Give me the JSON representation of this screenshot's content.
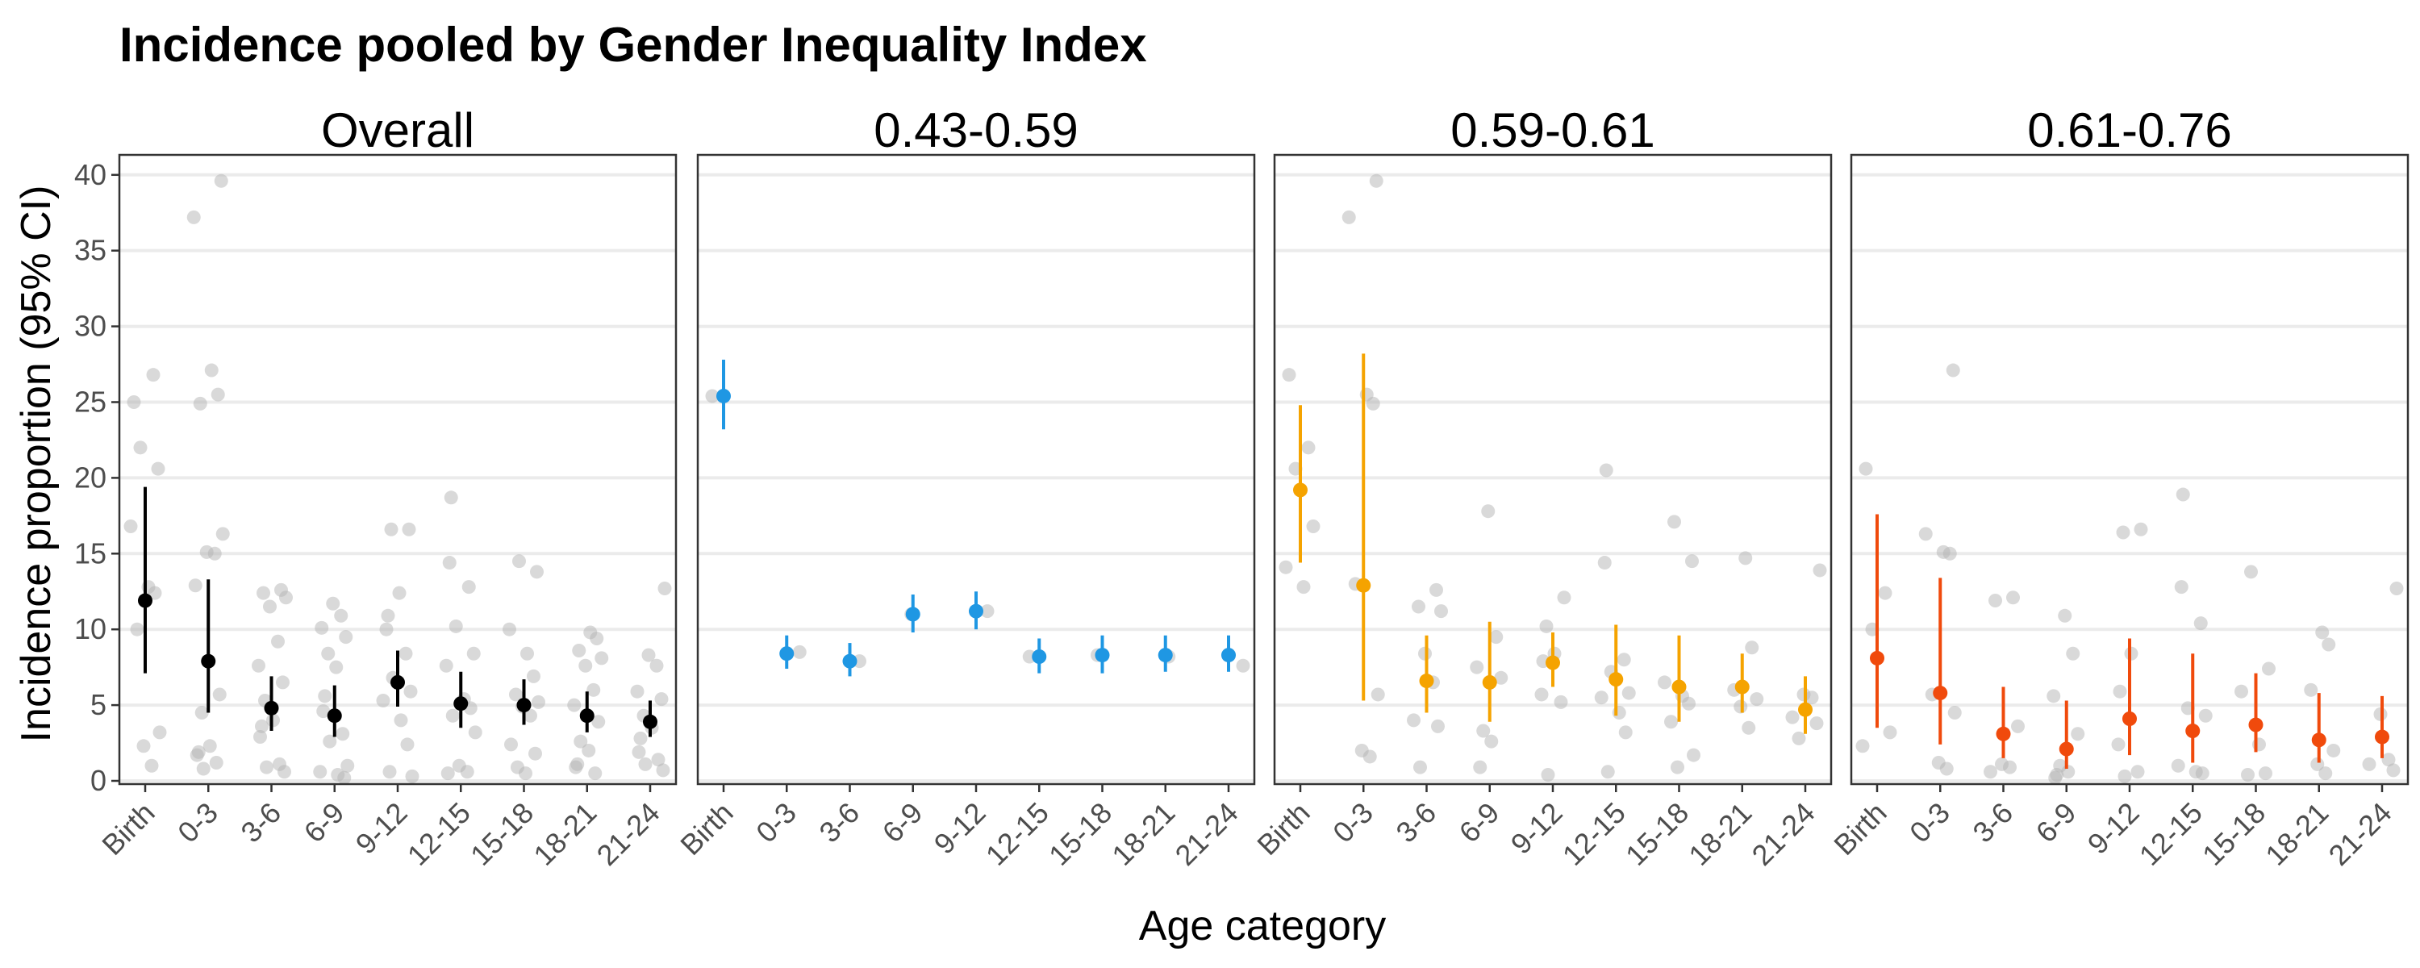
{
  "chart_data": {
    "type": "scatter",
    "title": "Incidence pooled by Gender Inequality Index",
    "xlabel": "Age category",
    "ylabel": "Incidence proportion (95% CI)",
    "categories": [
      "Birth",
      "0-3",
      "3-6",
      "6-9",
      "9-12",
      "12-15",
      "15-18",
      "18-21",
      "21-24"
    ],
    "ylim": [
      0,
      41
    ],
    "yticks": [
      0,
      5,
      10,
      15,
      20,
      25,
      30,
      35,
      40
    ],
    "grid": true,
    "colors": {
      "raw": "#c8c8c8",
      "panel_border": "#333333",
      "grid": "#ebebeb"
    },
    "panels": [
      {
        "label": "Overall",
        "color": "#000000",
        "estimates": [
          {
            "x": "Birth",
            "y": 11.9,
            "lower": 7.1,
            "upper": 19.4
          },
          {
            "x": "0-3",
            "y": 7.9,
            "lower": 4.5,
            "upper": 13.3
          },
          {
            "x": "3-6",
            "y": 4.8,
            "lower": 3.3,
            "upper": 6.9
          },
          {
            "x": "6-9",
            "y": 4.3,
            "lower": 2.9,
            "upper": 6.3
          },
          {
            "x": "9-12",
            "y": 6.5,
            "lower": 4.9,
            "upper": 8.6
          },
          {
            "x": "12-15",
            "y": 5.1,
            "lower": 3.5,
            "upper": 7.2
          },
          {
            "x": "15-18",
            "y": 5.0,
            "lower": 3.7,
            "upper": 6.7
          },
          {
            "x": "18-21",
            "y": 4.3,
            "lower": 3.2,
            "upper": 5.9
          },
          {
            "x": "21-24",
            "y": 3.9,
            "lower": 2.9,
            "upper": 5.3
          }
        ],
        "raw_points": [
          {
            "x": "Birth",
            "values": [
              25.0,
              26.8,
              22.0,
              20.6,
              16.8,
              12.8,
              12.4,
              10.0,
              3.2,
              2.3,
              1.0
            ]
          },
          {
            "x": "0-3",
            "values": [
              39.6,
              37.2,
              27.1,
              25.5,
              24.9,
              16.3,
              15.1,
              15.0,
              12.9,
              5.7,
              4.5,
              2.3,
              1.9,
              1.7,
              1.2,
              0.8
            ]
          },
          {
            "x": "3-6",
            "values": [
              12.6,
              12.4,
              12.1,
              11.5,
              9.2,
              7.6,
              6.5,
              5.3,
              4.0,
              3.6,
              2.9,
              1.1,
              0.9,
              0.6
            ]
          },
          {
            "x": "6-9",
            "values": [
              11.7,
              10.9,
              10.1,
              9.5,
              8.4,
              7.5,
              5.6,
              4.6,
              3.1,
              2.6,
              1.0,
              0.6,
              0.4,
              0.2
            ]
          },
          {
            "x": "9-12",
            "values": [
              16.6,
              16.6,
              12.4,
              10.9,
              10.0,
              8.4,
              6.8,
              5.9,
              5.3,
              4.0,
              2.4,
              0.6,
              0.3
            ]
          },
          {
            "x": "12-15",
            "values": [
              18.7,
              14.4,
              12.8,
              10.2,
              8.4,
              7.6,
              5.4,
              4.8,
              4.3,
              3.2,
              1.0,
              0.6,
              0.5
            ]
          },
          {
            "x": "15-18",
            "values": [
              14.5,
              13.8,
              10.0,
              8.4,
              6.9,
              5.7,
              5.2,
              4.9,
              4.3,
              2.4,
              1.8,
              0.9,
              0.5
            ]
          },
          {
            "x": "18-21",
            "values": [
              9.8,
              9.4,
              8.6,
              8.1,
              7.6,
              6.0,
              5.0,
              3.9,
              2.6,
              2.0,
              1.1,
              0.9,
              0.5
            ]
          },
          {
            "x": "21-24",
            "values": [
              12.7,
              8.3,
              7.6,
              5.9,
              5.4,
              4.3,
              3.5,
              2.8,
              1.9,
              1.4,
              1.1,
              0.7
            ]
          }
        ]
      },
      {
        "label": "0.43-0.59",
        "color": "#1f97e3",
        "estimates": [
          {
            "x": "Birth",
            "y": 25.4,
            "lower": 23.2,
            "upper": 27.8
          },
          {
            "x": "0-3",
            "y": 8.4,
            "lower": 7.4,
            "upper": 9.6
          },
          {
            "x": "3-6",
            "y": 7.9,
            "lower": 6.9,
            "upper": 9.1
          },
          {
            "x": "6-9",
            "y": 11.0,
            "lower": 9.8,
            "upper": 12.3
          },
          {
            "x": "9-12",
            "y": 11.2,
            "lower": 10.0,
            "upper": 12.5
          },
          {
            "x": "12-15",
            "y": 8.2,
            "lower": 7.1,
            "upper": 9.4
          },
          {
            "x": "15-18",
            "y": 8.3,
            "lower": 7.1,
            "upper": 9.6
          },
          {
            "x": "18-21",
            "y": 8.3,
            "lower": 7.2,
            "upper": 9.6
          },
          {
            "x": "21-24",
            "y": 8.3,
            "lower": 7.2,
            "upper": 9.6
          }
        ],
        "raw_points": [
          {
            "x": "Birth",
            "values": [
              25.4
            ]
          },
          {
            "x": "0-3",
            "values": [
              8.5
            ]
          },
          {
            "x": "3-6",
            "values": [
              7.9
            ]
          },
          {
            "x": "6-9",
            "values": [
              11.0
            ]
          },
          {
            "x": "9-12",
            "values": [
              11.2
            ]
          },
          {
            "x": "12-15",
            "values": [
              8.2
            ]
          },
          {
            "x": "15-18",
            "values": [
              8.3
            ]
          },
          {
            "x": "18-21",
            "values": [
              8.2
            ]
          },
          {
            "x": "21-24",
            "values": [
              7.6
            ]
          }
        ]
      },
      {
        "label": "0.59-0.61",
        "color": "#f5a300",
        "estimates": [
          {
            "x": "Birth",
            "y": 19.2,
            "lower": 14.4,
            "upper": 24.8
          },
          {
            "x": "0-3",
            "y": 12.9,
            "lower": 5.3,
            "upper": 28.2
          },
          {
            "x": "3-6",
            "y": 6.6,
            "lower": 4.5,
            "upper": 9.6
          },
          {
            "x": "6-9",
            "y": 6.5,
            "lower": 3.9,
            "upper": 10.5
          },
          {
            "x": "9-12",
            "y": 7.8,
            "lower": 6.2,
            "upper": 9.8
          },
          {
            "x": "12-15",
            "y": 6.7,
            "lower": 4.3,
            "upper": 10.3
          },
          {
            "x": "15-18",
            "y": 6.2,
            "lower": 3.9,
            "upper": 9.6
          },
          {
            "x": "18-21",
            "y": 6.2,
            "lower": 4.5,
            "upper": 8.4
          },
          {
            "x": "21-24",
            "y": 4.7,
            "lower": 3.1,
            "upper": 6.9
          }
        ],
        "raw_points": [
          {
            "x": "Birth",
            "values": [
              26.8,
              22.0,
              20.6,
              16.8,
              14.1,
              12.8
            ]
          },
          {
            "x": "0-3",
            "values": [
              39.6,
              37.2,
              25.5,
              24.9,
              13.0,
              5.7,
              2.0,
              1.6
            ]
          },
          {
            "x": "3-6",
            "values": [
              12.6,
              11.5,
              11.2,
              8.4,
              6.5,
              4.0,
              3.6,
              0.9
            ]
          },
          {
            "x": "6-9",
            "values": [
              17.8,
              9.5,
              7.5,
              6.8,
              3.3,
              2.6,
              0.9
            ]
          },
          {
            "x": "9-12",
            "values": [
              12.1,
              10.2,
              8.4,
              7.9,
              5.7,
              5.2,
              0.4
            ]
          },
          {
            "x": "12-15",
            "values": [
              20.5,
              14.4,
              8.0,
              7.2,
              5.8,
              5.5,
              4.5,
              3.2,
              0.6
            ]
          },
          {
            "x": "15-18",
            "values": [
              17.1,
              14.5,
              6.5,
              5.6,
              5.1,
              3.9,
              1.7,
              0.9
            ]
          },
          {
            "x": "18-21",
            "values": [
              14.7,
              8.8,
              6.0,
              5.4,
              4.9,
              3.5
            ]
          },
          {
            "x": "21-24",
            "values": [
              13.9,
              5.7,
              5.5,
              4.2,
              3.8,
              2.8
            ]
          }
        ]
      },
      {
        "label": "0.61-0.76",
        "color": "#f04a0c",
        "estimates": [
          {
            "x": "Birth",
            "y": 8.1,
            "lower": 3.5,
            "upper": 17.6
          },
          {
            "x": "0-3",
            "y": 5.8,
            "lower": 2.4,
            "upper": 13.4
          },
          {
            "x": "3-6",
            "y": 3.1,
            "lower": 1.5,
            "upper": 6.2
          },
          {
            "x": "6-9",
            "y": 2.1,
            "lower": 0.8,
            "upper": 5.3
          },
          {
            "x": "9-12",
            "y": 4.1,
            "lower": 1.7,
            "upper": 9.4
          },
          {
            "x": "12-15",
            "y": 3.3,
            "lower": 1.2,
            "upper": 8.4
          },
          {
            "x": "15-18",
            "y": 3.7,
            "lower": 1.9,
            "upper": 7.1
          },
          {
            "x": "18-21",
            "y": 2.7,
            "lower": 1.2,
            "upper": 5.8
          },
          {
            "x": "21-24",
            "y": 2.9,
            "lower": 1.5,
            "upper": 5.6
          }
        ],
        "raw_points": [
          {
            "x": "Birth",
            "values": [
              20.6,
              12.4,
              10.0,
              3.2,
              2.3
            ]
          },
          {
            "x": "0-3",
            "values": [
              27.1,
              16.3,
              15.1,
              15.0,
              5.7,
              4.5,
              1.2,
              0.8
            ]
          },
          {
            "x": "3-6",
            "values": [
              12.1,
              11.9,
              3.6,
              1.1,
              0.9,
              0.6
            ]
          },
          {
            "x": "6-9",
            "values": [
              10.9,
              8.4,
              5.6,
              3.1,
              1.0,
              0.6,
              0.4,
              0.2
            ]
          },
          {
            "x": "9-12",
            "values": [
              16.6,
              16.4,
              8.4,
              5.9,
              2.4,
              0.6,
              0.3
            ]
          },
          {
            "x": "12-15",
            "values": [
              18.9,
              12.8,
              10.4,
              4.8,
              4.3,
              1.0,
              0.6,
              0.5
            ]
          },
          {
            "x": "15-18",
            "values": [
              13.8,
              7.4,
              5.9,
              2.4,
              0.5,
              0.4
            ]
          },
          {
            "x": "18-21",
            "values": [
              9.8,
              9.0,
              6.0,
              2.0,
              1.1,
              0.5
            ]
          },
          {
            "x": "21-24",
            "values": [
              12.7,
              4.4,
              1.4,
              1.1,
              0.7
            ]
          }
        ]
      }
    ]
  }
}
